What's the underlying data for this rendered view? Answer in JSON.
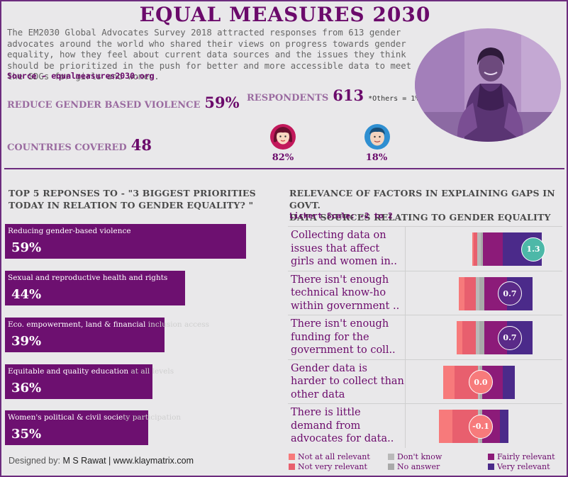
{
  "header": {
    "title": "EQUAL MEASURES 2030",
    "intro": "The EM2030 Global Advocates Survey 2018 attracted responses from 613 gender advocates around the world who shared their views on progress towards gender equality, how they feel about current data sources and the issues they think should be prioritized in the push for better and more accessible data to meet the SDGs for girls and women.",
    "source": "Source - equalmeasures2030.org"
  },
  "kpis": {
    "violence_label": "REDUCE GENDER BASED VIOLENCE",
    "violence_value": "59%",
    "respondents_label": "RESPONDENTS",
    "respondents_value": "613",
    "others_note": "*Others = 1%",
    "countries_label": "COUNTRIES COVERED",
    "countries_value": "48",
    "female_pct": "82%",
    "male_pct": "18%"
  },
  "icons": {
    "female": "woman-avatar-icon",
    "male": "man-avatar-icon",
    "photo": "woman-portrait-photo"
  },
  "left_section": {
    "title_line1": "TOP 5 REPONSES TO - \"3 BIGGEST PRIORITIES",
    "title_line2": "TODAY IN RELATION TO GENDER EQUALITY? \""
  },
  "right_section": {
    "title_line1": "RELEVANCE OF FACTORS IN EXPLAINING GAPS IN GOVT.",
    "title_line2": "DATA SOURCES RELATING TO GENDER EQUALITY",
    "scale_note": "Lickert Scale: -2 to 2"
  },
  "legend": {
    "not_at_all": "Not at all relevant",
    "not_very": "Not very relevant",
    "dont_know": "Don't know",
    "no_answer": "No answer",
    "fairly": "Fairly relevant",
    "very": "Very relevant"
  },
  "footer": {
    "designed_label": "Designed by:",
    "designer": "M S Rawat | www.klaymatrix.com"
  },
  "colors": {
    "title": "#6b0a6b",
    "bar": "#6d1070",
    "not_at_all": "#f77a7b",
    "not_very": "#e85f6e",
    "dont_know": "#b9b9b9",
    "no_answer": "#a9a9a9",
    "fairly": "#8c1b79",
    "very": "#4b2a8a",
    "mean_high": "#4db8a8",
    "mean_mid": "#5a2a88",
    "mean_low": "#f77a7b"
  },
  "chart_data": [
    {
      "type": "bar",
      "title": "TOP 5 REPONSES TO - \"3 BIGGEST PRIORITIES TODAY IN RELATION TO GENDER EQUALITY? \"",
      "categories": [
        "Reducing gender-based violence",
        "Sexual and reproductive health and rights",
        "Eco. empowerment, land & financial inclusion access",
        "Equitable and quality education at all levels",
        "Women's political & civil society participation"
      ],
      "values": [
        59,
        44,
        39,
        36,
        35
      ],
      "value_labels": [
        "59%",
        "44%",
        "39%",
        "36%",
        "35%"
      ],
      "xlim": [
        0,
        65
      ]
    },
    {
      "type": "bar",
      "title": "RELEVANCE OF FACTORS IN EXPLAINING GAPS IN GOVT. DATA SOURCES RELATING TO GENDER EQUALITY",
      "subtitle": "Lickert Scale: -2 to 2",
      "categories": [
        "Collecting data on issues that affect girls and women in..",
        "There isn't enough technical know-ho within government ..",
        "There isn't enough funding for the government to coll..",
        "Gender data is harder to collect than other data",
        "There is little demand from advocates for data.."
      ],
      "series": [
        {
          "name": "Not at all relevant",
          "values": [
            1,
            5,
            5,
            10,
            12
          ]
        },
        {
          "name": "Not very relevant",
          "values": [
            3,
            10,
            12,
            20,
            22
          ]
        },
        {
          "name": "Don't know",
          "values": [
            3,
            3,
            3,
            2,
            2
          ]
        },
        {
          "name": "No answer",
          "values": [
            2,
            4,
            4,
            2,
            2
          ]
        },
        {
          "name": "Fairly relevant",
          "values": [
            17,
            20,
            20,
            18,
            15
          ]
        },
        {
          "name": "Very relevant",
          "values": [
            34,
            22,
            22,
            10,
            8
          ]
        }
      ],
      "mean_scores": [
        1.3,
        0.7,
        0.7,
        0.0,
        -0.1
      ],
      "mean_labels": [
        "1.3",
        "0.7",
        "0.7",
        "0.0",
        "-0.1"
      ]
    }
  ]
}
